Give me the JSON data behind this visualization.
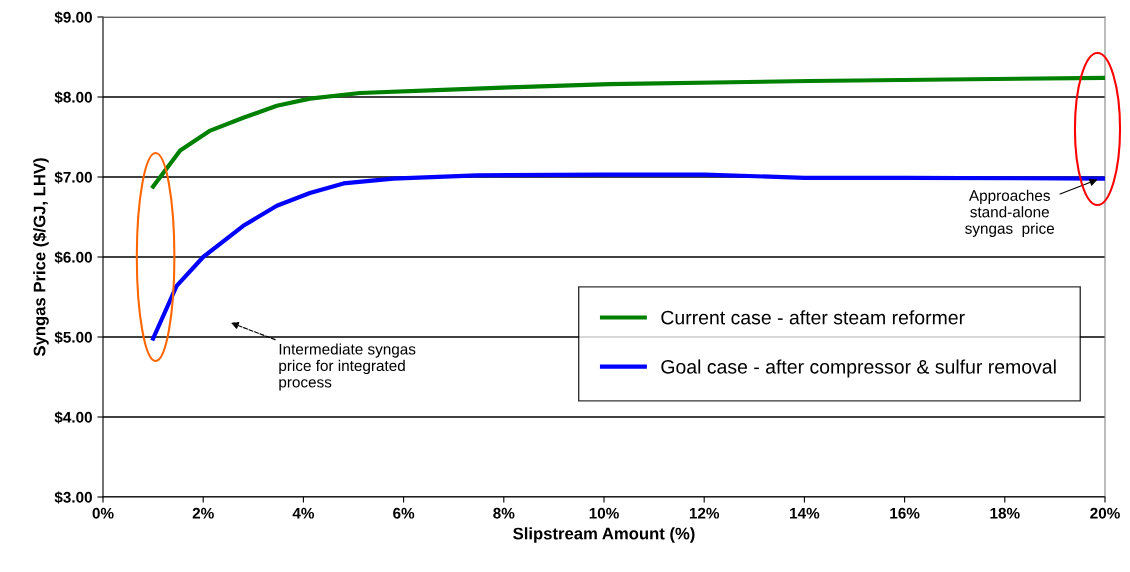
{
  "chart_data": {
    "type": "line",
    "xlabel": "Slipstream Amount (%)",
    "ylabel": "Syngas Price ($/GJ, LHV)",
    "xlim": [
      0,
      20
    ],
    "ylim": [
      3,
      9
    ],
    "xticks": [
      {
        "value": 0,
        "label": "0%"
      },
      {
        "value": 2,
        "label": "2%"
      },
      {
        "value": 4,
        "label": "4%"
      },
      {
        "value": 6,
        "label": "6%"
      },
      {
        "value": 8,
        "label": "8%"
      },
      {
        "value": 10,
        "label": "10%"
      },
      {
        "value": 12,
        "label": "12%"
      },
      {
        "value": 14,
        "label": "14%"
      },
      {
        "value": 16,
        "label": "16%"
      },
      {
        "value": 18,
        "label": "18%"
      },
      {
        "value": 20,
        "label": "20%"
      }
    ],
    "yticks": [
      {
        "value": 3,
        "label": "$3.00"
      },
      {
        "value": 4,
        "label": "$4.00"
      },
      {
        "value": 5,
        "label": "$5.00"
      },
      {
        "value": 6,
        "label": "$6.00"
      },
      {
        "value": 7,
        "label": "$7.00"
      },
      {
        "value": 8,
        "label": "$8.00"
      },
      {
        "value": 9,
        "label": "$9.00"
      }
    ],
    "grid": "y",
    "legend": "bottom right",
    "marker": "none",
    "line_style": "solid",
    "series": [
      {
        "name": "Current case - after steam reformer",
        "color": "#008000",
        "x": [
          1,
          1.54,
          2.14,
          2.8,
          3.47,
          4.13,
          5.13,
          6.79,
          8.12,
          10.1,
          14.1,
          20
        ],
        "values": [
          6.88,
          7.33,
          7.58,
          7.74,
          7.89,
          7.98,
          8.05,
          8.09,
          8.12,
          8.16,
          8.2,
          8.24
        ]
      },
      {
        "name": "Goal case - after compressor & sulfur removal",
        "color": "#0000ff",
        "x": [
          1,
          1.47,
          2.0,
          2.8,
          3.47,
          4.13,
          4.8,
          5.79,
          7.46,
          10,
          12,
          14,
          16,
          20
        ],
        "values": [
          4.98,
          5.64,
          6.0,
          6.39,
          6.64,
          6.8,
          6.92,
          6.98,
          7.02,
          7.03,
          7.03,
          6.99,
          6.99,
          6.98
        ]
      }
    ],
    "annotations": [
      "Intermediate syngas\nprice for integrated\nprocess",
      {
        "text": "Approaches\nstand-alone\nsyngas  price",
        "x": 19.9,
        "y": 6.98
      }
    ]
  }
}
